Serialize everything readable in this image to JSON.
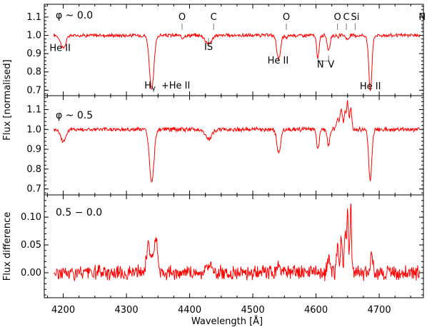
{
  "chart_data": [
    {
      "type": "line",
      "panel_label": "φ ~ 0.0",
      "ylim": [
        0.67,
        1.17
      ],
      "yticks": [
        0.7,
        0.8,
        0.9,
        1.0,
        1.1
      ],
      "ytick_labels": [
        "0.7",
        "0.8",
        "0.9",
        "1.0",
        "1.1"
      ],
      "continuum": 1.0,
      "noise": 0.008,
      "series": [
        {
          "color": "#ff0000"
        }
      ],
      "lines": [
        {
          "x": 4200,
          "depth": 0.07,
          "width": 4
        },
        {
          "x": 4340,
          "depth": 0.3,
          "width": 3.5
        },
        {
          "x": 4388,
          "depth": 0.015,
          "width": 2
        },
        {
          "x": 4430,
          "depth": 0.045,
          "width": 5
        },
        {
          "x": 4541,
          "depth": 0.13,
          "width": 3
        },
        {
          "x": 4553,
          "depth": 0.015,
          "width": 2
        },
        {
          "x": 4603,
          "depth": 0.12,
          "width": 2
        },
        {
          "x": 4620,
          "depth": 0.09,
          "width": 2
        },
        {
          "x": 4634,
          "depth": 0.015,
          "width": 1.5
        },
        {
          "x": 4650,
          "depth": 0.025,
          "width": 2
        },
        {
          "x": 4686,
          "depth": 0.3,
          "width": 2.5
        }
      ],
      "annotations": [
        {
          "text": "He II",
          "x": 4195,
          "y": 0.915
        },
        {
          "text": "O",
          "x": 4388,
          "y": 1.085
        },
        {
          "text": "C",
          "x": 4438,
          "y": 1.085
        },
        {
          "text": "IS",
          "x": 4430,
          "y": 0.92
        },
        {
          "text": "O",
          "x": 4553,
          "y": 1.085
        },
        {
          "text": "He II",
          "x": 4540,
          "y": 0.845
        },
        {
          "text": "O",
          "x": 4634,
          "y": 1.085
        },
        {
          "text": "C",
          "x": 4648,
          "y": 1.085
        },
        {
          "text": "Si",
          "x": 4662,
          "y": 1.085
        },
        {
          "text": "N",
          "x": 4768,
          "y": 1.085
        },
        {
          "text": "N",
          "x": 4607,
          "y": 0.825
        },
        {
          "text": "V",
          "x": 4624,
          "y": 0.825
        },
        {
          "text": "H",
          "x": 4334,
          "y": 0.71
        },
        {
          "text": "γ",
          "x": 4343,
          "y": 0.7
        },
        {
          "text": "+He II",
          "x": 4378,
          "y": 0.71
        },
        {
          "text": "He II",
          "x": 4686,
          "y": 0.705
        }
      ]
    },
    {
      "type": "line",
      "panel_label": "φ ~ 0.5",
      "ylim": [
        0.67,
        1.17
      ],
      "yticks": [
        0.7,
        0.8,
        0.9,
        1.0,
        1.1
      ],
      "ytick_labels": [
        "0.7",
        "0.8",
        "0.9",
        "1.0",
        "1.1"
      ],
      "continuum": 1.0,
      "noise": 0.009,
      "series": [
        {
          "color": "#ff0000"
        }
      ],
      "lines": [
        {
          "x": 4200,
          "depth": 0.06,
          "width": 4
        },
        {
          "x": 4340,
          "depth": 0.27,
          "width": 3.5
        },
        {
          "x": 4430,
          "depth": 0.05,
          "width": 5
        },
        {
          "x": 4541,
          "depth": 0.12,
          "width": 3
        },
        {
          "x": 4603,
          "depth": 0.1,
          "width": 2
        },
        {
          "x": 4620,
          "depth": 0.08,
          "width": 2
        },
        {
          "x": 4686,
          "depth": 0.27,
          "width": 2.5
        }
      ],
      "emissions": [
        {
          "x": 4634,
          "height": 0.05,
          "width": 2
        },
        {
          "x": 4640,
          "height": 0.1,
          "width": 2
        },
        {
          "x": 4646,
          "height": 0.08,
          "width": 1.5
        },
        {
          "x": 4650,
          "height": 0.14,
          "width": 1.5
        },
        {
          "x": 4655,
          "height": 0.11,
          "width": 1.5
        },
        {
          "x": 4688,
          "height": 0.02,
          "width": 2
        }
      ]
    },
    {
      "type": "line",
      "panel_label": "0.5 − 0.0",
      "ylim": [
        -0.045,
        0.14
      ],
      "yticks": [
        0.0,
        0.05,
        0.1
      ],
      "ytick_labels": [
        "0.00",
        "0.05",
        "0.10"
      ],
      "continuum": 0.0,
      "noise": 0.011,
      "series": [
        {
          "color": "#ff0000"
        }
      ],
      "emissions": [
        {
          "x": 4335,
          "height": 0.05,
          "width": 3
        },
        {
          "x": 4345,
          "height": 0.045,
          "width": 3
        },
        {
          "x": 4349,
          "height": 0.03,
          "width": 2
        },
        {
          "x": 4430,
          "height": 0.015,
          "width": 4
        },
        {
          "x": 4541,
          "height": 0.015,
          "width": 3
        },
        {
          "x": 4620,
          "height": 0.025,
          "width": 2
        },
        {
          "x": 4634,
          "height": 0.05,
          "width": 1.5
        },
        {
          "x": 4640,
          "height": 0.07,
          "width": 1.5
        },
        {
          "x": 4646,
          "height": 0.065,
          "width": 1.5
        },
        {
          "x": 4650,
          "height": 0.11,
          "width": 1.2
        },
        {
          "x": 4655,
          "height": 0.12,
          "width": 1.2
        },
        {
          "x": 4688,
          "height": 0.035,
          "width": 2
        }
      ]
    }
  ],
  "xaxis": {
    "xlim": [
      4170,
      4770
    ],
    "ticks": [
      4200,
      4300,
      4400,
      4500,
      4600,
      4700
    ],
    "tick_labels": [
      "4200",
      "4300",
      "4400",
      "4500",
      "4600",
      "4700"
    ],
    "label": "Wavelength [Å]"
  },
  "ylabels": {
    "top": "Flux [normalised]",
    "bottom": "Flux difference"
  }
}
